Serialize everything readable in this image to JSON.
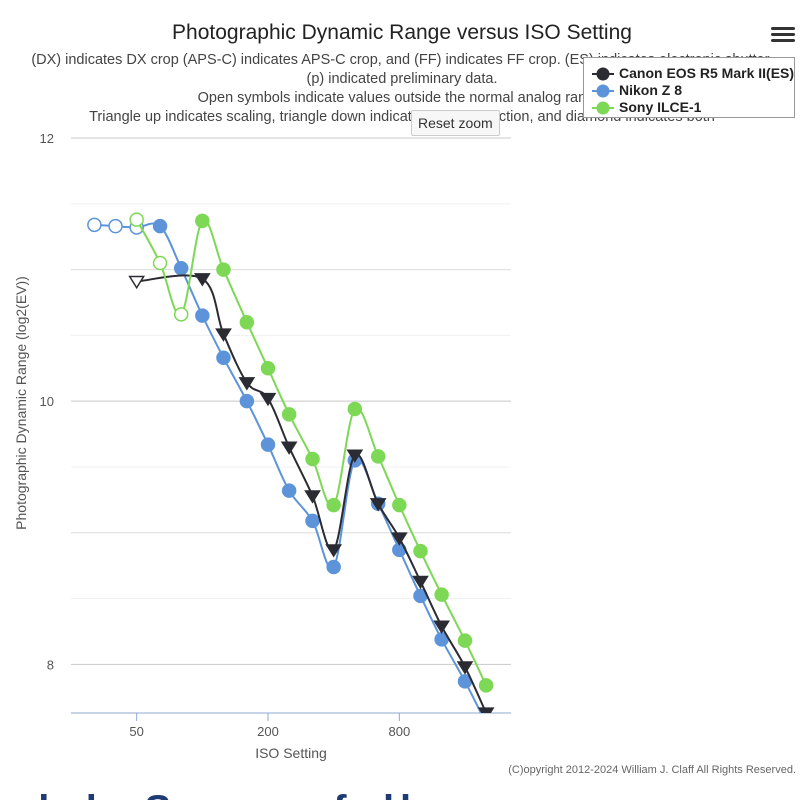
{
  "chart_data": {
    "type": "line",
    "title": "Photographic Dynamic Range versus ISO Setting",
    "subtitle_lines": [
      "(DX) indicates DX crop (APS-C) indicates APS-C crop, and (FF) indicates FF crop. (ES) indicates electronic shutter.",
      "(p) indicated preliminary data.",
      "Open symbols indicate values outside the normal analog range.",
      "Triangle up indicates scaling, triangle down indicates noise reduction, and diamond indicates both"
    ],
    "xlabel": "ISO Setting",
    "ylabel": "Photographic Dynamic Range (log2(EV))",
    "x_scale": "log2",
    "x_ticks": [
      50,
      200,
      800
    ],
    "y_ticks": [
      8,
      10,
      12
    ],
    "xlim": [
      25,
      2600
    ],
    "ylim": [
      7.63,
      12
    ],
    "credits": "(C)opyright 2012-2024 William J. Claff All Rights Reserved.",
    "reset_zoom_label": "Reset zoom",
    "series": [
      {
        "name": "Canon EOS R5 Mark II(ES)",
        "color": "#2b2b33",
        "marker": "triangle-down",
        "points": [
          {
            "x": 50,
            "y": 10.91,
            "open": true
          },
          {
            "x": 100,
            "y": 10.93,
            "open": false
          },
          {
            "x": 125,
            "y": 10.51,
            "open": false
          },
          {
            "x": 160,
            "y": 10.14,
            "open": false
          },
          {
            "x": 200,
            "y": 10.02,
            "open": false
          },
          {
            "x": 250,
            "y": 9.65,
            "open": false
          },
          {
            "x": 320,
            "y": 9.28,
            "open": false
          },
          {
            "x": 400,
            "y": 8.87,
            "open": false
          },
          {
            "x": 500,
            "y": 9.59,
            "open": false
          },
          {
            "x": 640,
            "y": 9.22,
            "open": false
          },
          {
            "x": 800,
            "y": 8.96,
            "open": false
          },
          {
            "x": 1000,
            "y": 8.63,
            "open": false
          },
          {
            "x": 1250,
            "y": 8.29,
            "open": false
          },
          {
            "x": 1600,
            "y": 7.98,
            "open": false
          },
          {
            "x": 2000,
            "y": 7.63,
            "open": false
          }
        ]
      },
      {
        "name": "Nikon Z 8",
        "color": "#5d94d9",
        "marker": "circle",
        "points": [
          {
            "x": 32,
            "y": 11.34,
            "open": true
          },
          {
            "x": 40,
            "y": 11.33,
            "open": true
          },
          {
            "x": 50,
            "y": 11.32,
            "open": true
          },
          {
            "x": 64,
            "y": 11.33,
            "open": false
          },
          {
            "x": 80,
            "y": 11.01,
            "open": false
          },
          {
            "x": 100,
            "y": 10.65,
            "open": false
          },
          {
            "x": 125,
            "y": 10.33,
            "open": false
          },
          {
            "x": 160,
            "y": 10.0,
            "open": false
          },
          {
            "x": 200,
            "y": 9.67,
            "open": false
          },
          {
            "x": 250,
            "y": 9.32,
            "open": false
          },
          {
            "x": 320,
            "y": 9.09,
            "open": false
          },
          {
            "x": 400,
            "y": 8.74,
            "open": false
          },
          {
            "x": 500,
            "y": 9.55,
            "open": false
          },
          {
            "x": 640,
            "y": 9.22,
            "open": false
          },
          {
            "x": 800,
            "y": 8.87,
            "open": false
          },
          {
            "x": 1000,
            "y": 8.52,
            "open": false
          },
          {
            "x": 1250,
            "y": 8.19,
            "open": false
          },
          {
            "x": 1600,
            "y": 7.87,
            "open": false
          },
          {
            "x": 2000,
            "y": 7.55,
            "open": false
          }
        ]
      },
      {
        "name": "Sony ILCE-1",
        "color": "#7dd855",
        "marker": "circle",
        "points": [
          {
            "x": 50,
            "y": 11.38,
            "open": true
          },
          {
            "x": 64,
            "y": 11.05,
            "open": true
          },
          {
            "x": 80,
            "y": 10.66,
            "open": true
          },
          {
            "x": 100,
            "y": 11.37,
            "open": false
          },
          {
            "x": 125,
            "y": 11.0,
            "open": false
          },
          {
            "x": 160,
            "y": 10.6,
            "open": false
          },
          {
            "x": 200,
            "y": 10.25,
            "open": false
          },
          {
            "x": 250,
            "y": 9.9,
            "open": false
          },
          {
            "x": 320,
            "y": 9.56,
            "open": false
          },
          {
            "x": 400,
            "y": 9.21,
            "open": false
          },
          {
            "x": 500,
            "y": 9.94,
            "open": false
          },
          {
            "x": 640,
            "y": 9.58,
            "open": false
          },
          {
            "x": 800,
            "y": 9.21,
            "open": false
          },
          {
            "x": 1000,
            "y": 8.86,
            "open": false
          },
          {
            "x": 1250,
            "y": 8.53,
            "open": false
          },
          {
            "x": 1600,
            "y": 8.18,
            "open": false
          },
          {
            "x": 2000,
            "y": 7.84,
            "open": false
          }
        ]
      }
    ]
  },
  "bottom_strip_text": "alphaSource full scene"
}
